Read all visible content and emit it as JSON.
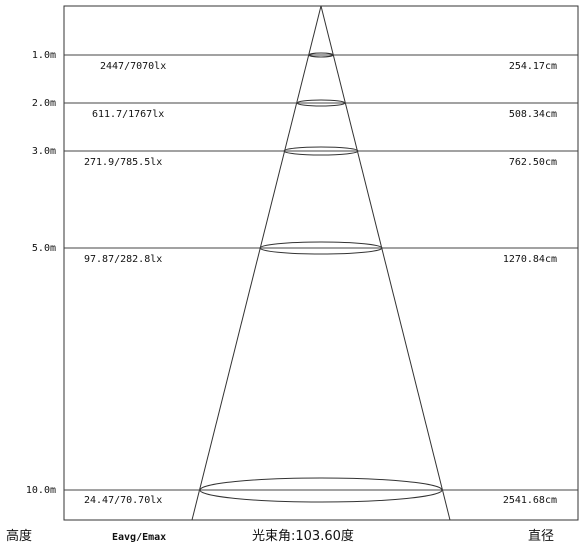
{
  "rows": [
    {
      "height": "1.0m",
      "illuminance": "2447/7070lx",
      "diameter": "254.17cm",
      "h": 1.0,
      "d": 254.17
    },
    {
      "height": "2.0m",
      "illuminance": "611.7/1767lx",
      "diameter": "508.34cm",
      "h": 2.0,
      "d": 508.34
    },
    {
      "height": "3.0m",
      "illuminance": "271.9/785.5lx",
      "diameter": "762.50cm",
      "h": 3.0,
      "d": 762.5
    },
    {
      "height": "5.0m",
      "illuminance": "97.87/282.8lx",
      "diameter": "1270.84cm",
      "h": 5.0,
      "d": 1270.84
    },
    {
      "height": "10.0m",
      "illuminance": "24.47/70.70lx",
      "diameter": "2541.68cm",
      "h": 10.0,
      "d": 2541.68
    }
  ],
  "footer": {
    "height_label": "高度",
    "eavg_label": "Eavg/Emax",
    "beam_angle_label": "光束角:103.60度",
    "diameter_label": "直径"
  }
}
